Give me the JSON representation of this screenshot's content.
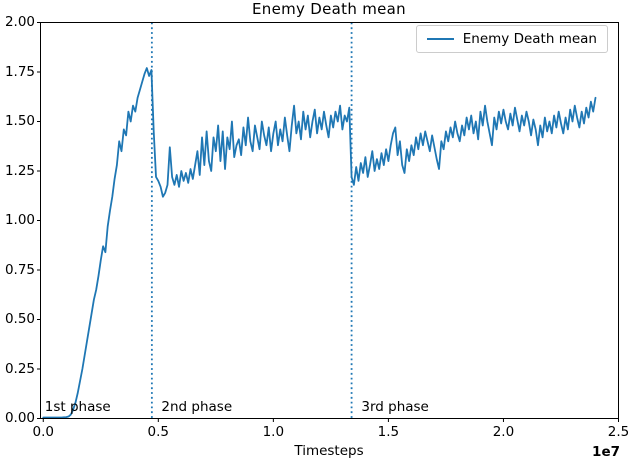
{
  "chart_data": {
    "type": "line",
    "title": "Enemy Death mean",
    "xlabel": "Timesteps",
    "ylabel": "",
    "x_offset_label": "1e7",
    "x_unit_multiplier": 10000000,
    "xlim": [
      -0.012,
      2.5
    ],
    "ylim": [
      0.0,
      2.0
    ],
    "grid": false,
    "legend": {
      "label": "Enemy Death mean",
      "position": "upper right"
    },
    "colors": {
      "line": "#1f77b4",
      "axis": "#000000",
      "background": "#ffffff",
      "legend_border": "#cccccc",
      "text": "#000000"
    },
    "xticks": {
      "values": [
        0.0,
        0.5,
        1.0,
        1.5,
        2.0,
        2.5
      ],
      "labels": [
        "0.0",
        "0.5",
        "1.0",
        "1.5",
        "2.0",
        "2.5"
      ]
    },
    "yticks": {
      "values": [
        0.0,
        0.25,
        0.5,
        0.75,
        1.0,
        1.25,
        1.5,
        1.75,
        2.0
      ],
      "labels": [
        "0.00",
        "0.25",
        "0.50",
        "0.75",
        "1.00",
        "1.25",
        "1.50",
        "1.75",
        "2.00"
      ]
    },
    "vlines": [
      {
        "x": 0.472,
        "style": "dotted",
        "color": "#1f77b4"
      },
      {
        "x": 1.34,
        "style": "dotted",
        "color": "#1f77b4"
      }
    ],
    "annotations": [
      {
        "text": "1st phase",
        "x": 0.0,
        "y": 0.04
      },
      {
        "text": "2nd phase",
        "x": 0.507,
        "y": 0.04
      },
      {
        "text": "3rd phase",
        "x": 1.376,
        "y": 0.04
      }
    ],
    "series": [
      {
        "name": "Enemy Death mean",
        "color": "#1f77b4",
        "x0": 0.0,
        "dx": 0.01,
        "values": [
          0.005,
          0.005,
          0.005,
          0.005,
          0.005,
          0.005,
          0.005,
          0.005,
          0.005,
          0.006,
          0.007,
          0.01,
          0.02,
          0.045,
          0.08,
          0.13,
          0.19,
          0.25,
          0.32,
          0.39,
          0.46,
          0.53,
          0.6,
          0.65,
          0.72,
          0.8,
          0.87,
          0.84,
          0.97,
          1.05,
          1.12,
          1.21,
          1.28,
          1.4,
          1.35,
          1.46,
          1.43,
          1.55,
          1.5,
          1.58,
          1.55,
          1.62,
          1.66,
          1.7,
          1.74,
          1.77,
          1.73,
          1.76,
          1.45,
          1.22,
          1.2,
          1.17,
          1.12,
          1.14,
          1.18,
          1.37,
          1.22,
          1.18,
          1.23,
          1.17,
          1.25,
          1.2,
          1.24,
          1.19,
          1.26,
          1.21,
          1.28,
          1.35,
          1.23,
          1.42,
          1.28,
          1.45,
          1.3,
          1.25,
          1.42,
          1.35,
          1.48,
          1.3,
          1.45,
          1.26,
          1.42,
          1.36,
          1.5,
          1.32,
          1.38,
          1.41,
          1.33,
          1.47,
          1.38,
          1.52,
          1.4,
          1.35,
          1.48,
          1.42,
          1.36,
          1.5,
          1.43,
          1.38,
          1.47,
          1.35,
          1.44,
          1.5,
          1.38,
          1.46,
          1.4,
          1.52,
          1.43,
          1.35,
          1.48,
          1.58,
          1.44,
          1.5,
          1.41,
          1.55,
          1.46,
          1.53,
          1.42,
          1.5,
          1.56,
          1.44,
          1.52,
          1.46,
          1.55,
          1.48,
          1.42,
          1.53,
          1.47,
          1.55,
          1.5,
          1.58,
          1.46,
          1.53,
          1.5,
          1.57,
          1.22,
          1.18,
          1.27,
          1.2,
          1.29,
          1.24,
          1.32,
          1.22,
          1.28,
          1.35,
          1.25,
          1.31,
          1.26,
          1.34,
          1.28,
          1.36,
          1.3,
          1.38,
          1.44,
          1.47,
          1.33,
          1.4,
          1.28,
          1.24,
          1.36,
          1.3,
          1.38,
          1.33,
          1.42,
          1.36,
          1.44,
          1.38,
          1.45,
          1.4,
          1.35,
          1.43,
          1.37,
          1.31,
          1.26,
          1.4,
          1.36,
          1.45,
          1.4,
          1.47,
          1.42,
          1.5,
          1.44,
          1.4,
          1.48,
          1.43,
          1.52,
          1.46,
          1.53,
          1.44,
          1.5,
          1.41,
          1.55,
          1.48,
          1.58,
          1.5,
          1.44,
          1.38,
          1.52,
          1.46,
          1.55,
          1.49,
          1.56,
          1.5,
          1.46,
          1.54,
          1.48,
          1.57,
          1.51,
          1.45,
          1.53,
          1.48,
          1.55,
          1.5,
          1.43,
          1.51,
          1.46,
          1.38,
          1.48,
          1.42,
          1.52,
          1.45,
          1.5,
          1.44,
          1.53,
          1.47,
          1.55,
          1.49,
          1.44,
          1.52,
          1.46,
          1.56,
          1.5,
          1.58,
          1.52,
          1.47,
          1.55,
          1.49,
          1.57,
          1.52,
          1.6,
          1.55,
          1.62
        ]
      }
    ]
  }
}
